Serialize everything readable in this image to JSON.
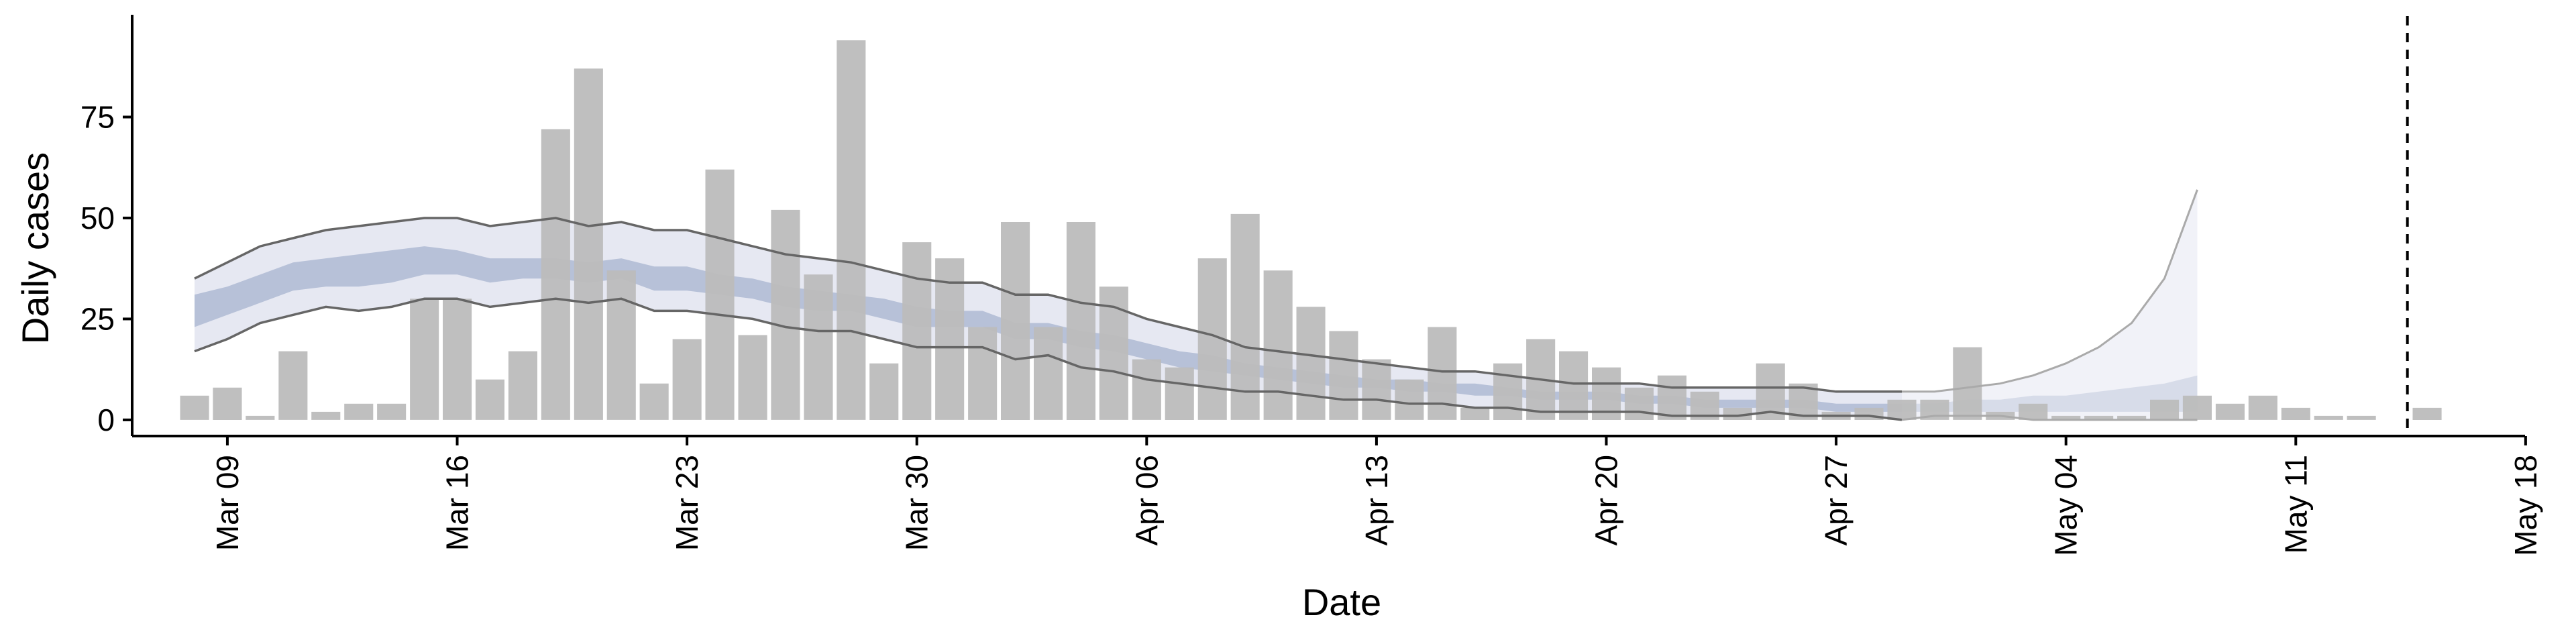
{
  "chart_data": {
    "type": "bar",
    "title": "",
    "xlabel": "Date",
    "ylabel": "Daily cases",
    "ylim": [
      -4,
      99
    ],
    "yticks": [
      0,
      25,
      50,
      75
    ],
    "x_range_days": [
      -1.9,
      70.9
    ],
    "x_origin": "Mar 08",
    "xticks": [
      {
        "day": 1,
        "label": "Mar 09"
      },
      {
        "day": 8,
        "label": "Mar 16"
      },
      {
        "day": 15,
        "label": "Mar 23"
      },
      {
        "day": 22,
        "label": "Mar 30"
      },
      {
        "day": 29,
        "label": "Apr 06"
      },
      {
        "day": 36,
        "label": "Apr 13"
      },
      {
        "day": 43,
        "label": "Apr 20"
      },
      {
        "day": 50,
        "label": "Apr 27"
      },
      {
        "day": 57,
        "label": "May 04"
      },
      {
        "day": 64,
        "label": "May 11"
      },
      {
        "day": 71,
        "label": "May 18"
      }
    ],
    "forecast_date_day": 67.4,
    "bar_color": "#bcbcbc",
    "band_outer_color": "#e6e8f2",
    "band_inner_color": "#b7c1d8",
    "line_color": "#666666",
    "series": [
      {
        "name": "Reported daily cases",
        "start_day": 0,
        "values": [
          6,
          8,
          1,
          17,
          2,
          4,
          4,
          30,
          30,
          10,
          17,
          72,
          87,
          37,
          9,
          20,
          62,
          21,
          52,
          36,
          94,
          14,
          44,
          40,
          23,
          49,
          23,
          49,
          33,
          15,
          13,
          40,
          51,
          37,
          28,
          22,
          15,
          10,
          23,
          3,
          14,
          20,
          17,
          13,
          8,
          11,
          7,
          3,
          14,
          9,
          2,
          3,
          5,
          5,
          18,
          2,
          4,
          1,
          1,
          1,
          5,
          6,
          4,
          6,
          3,
          1,
          1,
          0,
          3
        ]
      },
      {
        "name": "Estimate 90% upper",
        "start_day": 0,
        "values": [
          35,
          39,
          43,
          45,
          47,
          48,
          49,
          50,
          50,
          48,
          49,
          50,
          48,
          49,
          47,
          47,
          45,
          43,
          41,
          40,
          39,
          37,
          35,
          34,
          34,
          31,
          31,
          29,
          28,
          25,
          23,
          21,
          18,
          17,
          16,
          15,
          14,
          13,
          12,
          12,
          11,
          10,
          9,
          9,
          9,
          8,
          8,
          8,
          8,
          8,
          7,
          7,
          7,
          7,
          8,
          9,
          11,
          14,
          18,
          24,
          35,
          57
        ]
      },
      {
        "name": "Estimate 90% lower",
        "start_day": 0,
        "values": [
          17,
          20,
          24,
          26,
          28,
          27,
          28,
          30,
          30,
          28,
          29,
          30,
          29,
          30,
          27,
          27,
          26,
          25,
          23,
          22,
          22,
          20,
          18,
          18,
          18,
          15,
          16,
          13,
          12,
          10,
          9,
          8,
          7,
          7,
          6,
          5,
          5,
          4,
          4,
          3,
          3,
          2,
          2,
          2,
          2,
          1,
          1,
          1,
          2,
          1,
          1,
          1,
          0,
          1,
          1,
          1,
          0,
          0,
          0,
          0,
          0,
          0
        ]
      },
      {
        "name": "Estimate 50% upper",
        "start_day": 0,
        "values": [
          31,
          33,
          36,
          39,
          40,
          41,
          42,
          43,
          42,
          40,
          40,
          40,
          39,
          40,
          38,
          38,
          36,
          35,
          33,
          32,
          31,
          30,
          28,
          27,
          27,
          24,
          24,
          22,
          21,
          19,
          17,
          16,
          14,
          13,
          12,
          11,
          10,
          10,
          9,
          9,
          8,
          7,
          7,
          7,
          6,
          6,
          5,
          5,
          5,
          5,
          4,
          4,
          4,
          4,
          5,
          5,
          6,
          6,
          7,
          8,
          9,
          11
        ]
      },
      {
        "name": "Estimate 50% lower",
        "start_day": 0,
        "values": [
          23,
          26,
          29,
          32,
          33,
          33,
          34,
          36,
          36,
          34,
          35,
          35,
          34,
          35,
          32,
          32,
          31,
          30,
          28,
          27,
          27,
          25,
          23,
          23,
          23,
          20,
          20,
          18,
          17,
          15,
          13,
          12,
          11,
          10,
          9,
          8,
          8,
          7,
          7,
          6,
          6,
          5,
          5,
          5,
          4,
          4,
          3,
          3,
          3,
          3,
          2,
          2,
          2,
          2,
          2,
          2,
          2,
          2,
          2,
          2,
          2,
          2
        ]
      }
    ],
    "estimate_type_switch_day": 52
  }
}
